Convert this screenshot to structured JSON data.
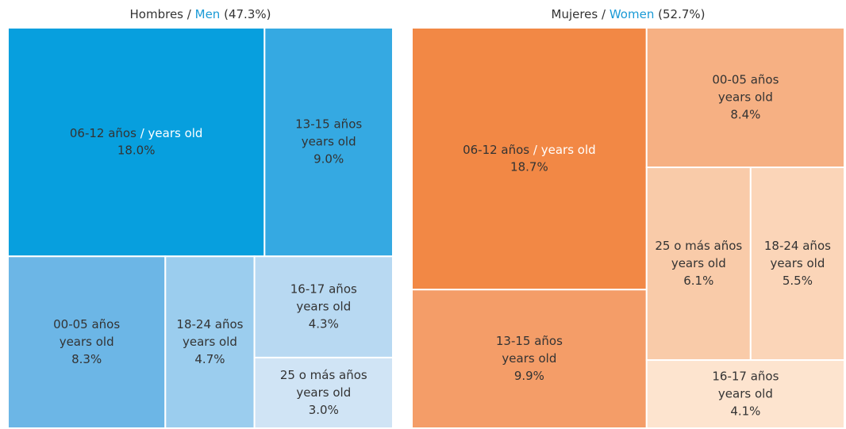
{
  "chart_data": [
    {
      "type": "treemap",
      "title_es": "Hombres",
      "separator": "/",
      "title_en": "Men",
      "total": 47.3,
      "total_label": "(47.3%)",
      "sublabel": "years old",
      "categories": [
        "06-12 años",
        "13-15 años",
        "00-05 años",
        "18-24 años",
        "16-17 años",
        "25 o más años"
      ],
      "values": [
        18.0,
        9.0,
        8.3,
        4.7,
        4.3,
        3.0
      ],
      "value_labels": [
        "18.0%",
        "9.0%",
        "8.3%",
        "4.7%",
        "4.3%",
        "3.0%"
      ],
      "colors": [
        "#079fde",
        "#35a9e2",
        "#6cb6e6",
        "#9bcdee",
        "#b8d9f2",
        "#d0e4f5"
      ],
      "sublabel_colors": [
        "#ffffff",
        "#ffffff",
        "#ffffff",
        "#1a9ad6",
        "#1a9ad6",
        "#1a9ad6"
      ]
    },
    {
      "type": "treemap",
      "title_es": "Mujeres",
      "separator": "/",
      "title_en": "Women",
      "total": 52.7,
      "total_label": "(52.7%)",
      "sublabel": "years old",
      "categories": [
        "06-12 años",
        "13-15 años",
        "00-05 años",
        "25 o más años",
        "18-24 años",
        "16-17 años"
      ],
      "values": [
        18.7,
        9.9,
        8.4,
        6.1,
        5.5,
        4.1
      ],
      "value_labels": [
        "18.7%",
        "9.9%",
        "8.4%",
        "6.1%",
        "5.5%",
        "4.1%"
      ],
      "colors": [
        "#f28845",
        "#f49d68",
        "#f6b083",
        "#f9cba9",
        "#fbd5b8",
        "#fde4cf"
      ],
      "sublabel_colors": [
        "#ffffff",
        "#ffffff",
        "#ffffff",
        "#1a9ad6",
        "#1a9ad6",
        "#1a9ad6"
      ]
    }
  ]
}
